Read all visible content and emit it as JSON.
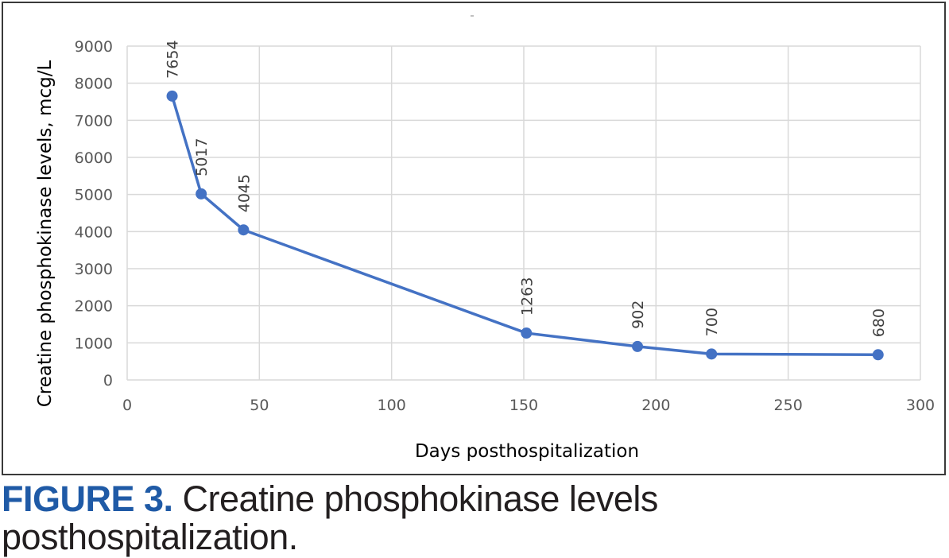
{
  "chart_data": {
    "type": "line",
    "title": "",
    "xlabel": "Days posthospitalization",
    "ylabel": "Creatine phosphokinase levels, mcg/L",
    "xlim": [
      0,
      300
    ],
    "ylim": [
      0,
      9000
    ],
    "x_ticks": [
      "0",
      "50",
      "100",
      "150",
      "200",
      "250",
      "300"
    ],
    "y_ticks": [
      "0",
      "1000",
      "2000",
      "3000",
      "4000",
      "5000",
      "6000",
      "7000",
      "8000",
      "9000"
    ],
    "grid": true,
    "legend": "none",
    "series": [
      {
        "name": "Creatine phosphokinase",
        "color": "#4472c4",
        "x": [
          17,
          28,
          44,
          151,
          193,
          221,
          284
        ],
        "values": [
          7654,
          5017,
          4045,
          1263,
          902,
          700,
          680
        ],
        "labels": [
          "7654",
          "5017",
          "4045",
          "1263",
          "902",
          "700",
          "680"
        ]
      }
    ]
  },
  "caption": {
    "label": "FIGURE 3.",
    "text": " Creatine phosphokinase levels posthospitalization."
  },
  "colors": {
    "series": "#4472c4",
    "grid": "#d9d9d9",
    "caption_label": "#1f5aa6"
  }
}
